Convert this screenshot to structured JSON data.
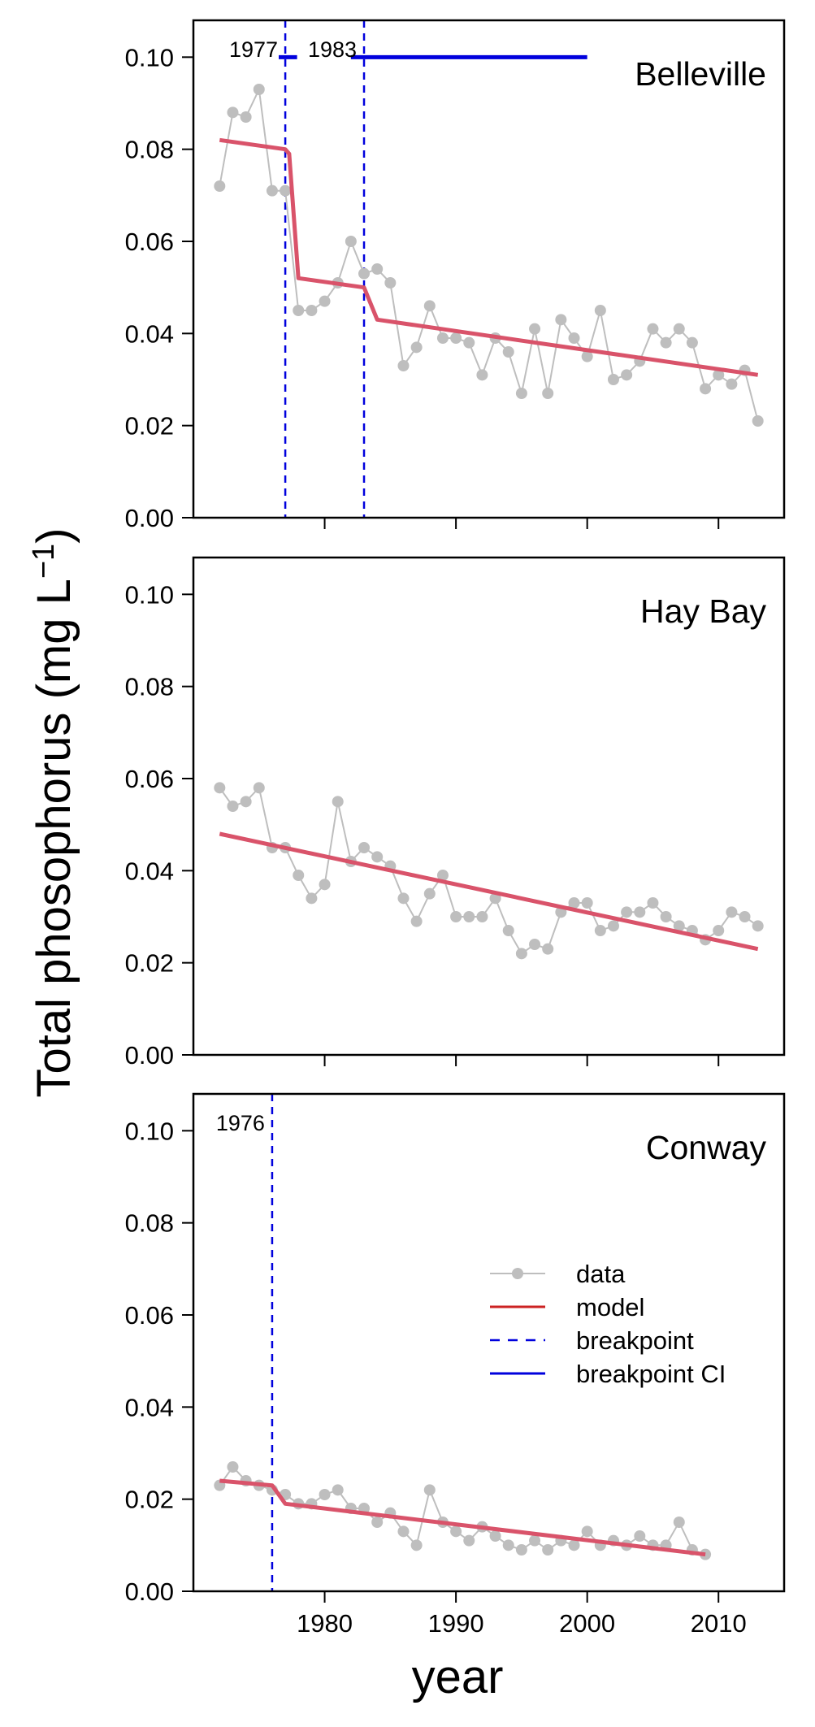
{
  "figure": {
    "ylabel_main": "Total phosophorus (mg L",
    "ylabel_sup": "−1",
    "ylabel_close": ")",
    "xlabel": "year",
    "x_ticks": [
      1980,
      1990,
      2000,
      2010
    ],
    "y_ticks": [
      "0.00",
      "0.02",
      "0.04",
      "0.06",
      "0.08",
      "0.10"
    ]
  },
  "colors": {
    "data": "#bebebe",
    "model": "#d9536a",
    "breakpoint": "#0000dd",
    "axis": "#000000"
  },
  "legend": {
    "items": [
      {
        "label": "data",
        "style": "data"
      },
      {
        "label": "model",
        "style": "model"
      },
      {
        "label": "breakpoint",
        "style": "breakpoint"
      },
      {
        "label": "breakpoint CI",
        "style": "ci"
      }
    ]
  },
  "chart_data": [
    {
      "type": "line",
      "title": "Belleville",
      "xlim": [
        1970,
        2015
      ],
      "ylim": [
        0,
        0.108
      ],
      "series": [
        {
          "name": "data",
          "x": [
            1972,
            1973,
            1974,
            1975,
            1976,
            1977,
            1978,
            1979,
            1980,
            1981,
            1982,
            1983,
            1984,
            1985,
            1986,
            1987,
            1988,
            1989,
            1990,
            1991,
            1992,
            1993,
            1994,
            1995,
            1996,
            1997,
            1998,
            1999,
            2000,
            2001,
            2002,
            2003,
            2004,
            2005,
            2006,
            2007,
            2008,
            2009,
            2010,
            2011,
            2012,
            2013
          ],
          "y": [
            0.072,
            0.088,
            0.087,
            0.093,
            0.071,
            0.071,
            0.045,
            0.045,
            0.047,
            0.051,
            0.06,
            0.053,
            0.054,
            0.051,
            0.033,
            0.037,
            0.046,
            0.039,
            0.039,
            0.038,
            0.031,
            0.039,
            0.036,
            0.027,
            0.041,
            0.027,
            0.043,
            0.039,
            0.035,
            0.045,
            0.03,
            0.031,
            0.034,
            0.041,
            0.038,
            0.041,
            0.038,
            0.028,
            0.031,
            0.029,
            0.032,
            0.021
          ]
        },
        {
          "name": "model",
          "x": [
            1972,
            1977,
            1977.3,
            1978,
            1983,
            1984,
            2013
          ],
          "y": [
            0.082,
            0.08,
            0.079,
            0.052,
            0.05,
            0.043,
            0.031
          ]
        }
      ],
      "breakpoints": [
        {
          "year": 1977,
          "label": "1977",
          "ci": [
            1976.5,
            1977.9
          ]
        },
        {
          "year": 1983,
          "label": "1983",
          "ci": [
            1982,
            2000
          ]
        }
      ]
    },
    {
      "type": "line",
      "title": "Hay Bay",
      "xlim": [
        1970,
        2015
      ],
      "ylim": [
        0,
        0.108
      ],
      "series": [
        {
          "name": "data",
          "x": [
            1972,
            1973,
            1974,
            1975,
            1976,
            1977,
            1978,
            1979,
            1980,
            1981,
            1982,
            1983,
            1984,
            1985,
            1986,
            1987,
            1988,
            1989,
            1990,
            1991,
            1992,
            1993,
            1994,
            1995,
            1996,
            1997,
            1998,
            1999,
            2000,
            2001,
            2002,
            2003,
            2004,
            2005,
            2006,
            2007,
            2008,
            2009,
            2010,
            2011,
            2012,
            2013
          ],
          "y": [
            0.058,
            0.054,
            0.055,
            0.058,
            0.045,
            0.045,
            0.039,
            0.034,
            0.037,
            0.055,
            0.042,
            0.045,
            0.043,
            0.041,
            0.034,
            0.029,
            0.035,
            0.039,
            0.03,
            0.03,
            0.03,
            0.034,
            0.027,
            0.022,
            0.024,
            0.023,
            0.031,
            0.033,
            0.033,
            0.027,
            0.028,
            0.031,
            0.031,
            0.033,
            0.03,
            0.028,
            0.027,
            0.025,
            0.027,
            0.031,
            0.03,
            0.028
          ]
        },
        {
          "name": "model",
          "x": [
            1972,
            2013
          ],
          "y": [
            0.048,
            0.023
          ]
        }
      ],
      "breakpoints": []
    },
    {
      "type": "line",
      "title": "Conway",
      "xlim": [
        1970,
        2015
      ],
      "ylim": [
        0,
        0.108
      ],
      "series": [
        {
          "name": "data",
          "x": [
            1972,
            1973,
            1974,
            1975,
            1976,
            1977,
            1978,
            1979,
            1980,
            1981,
            1982,
            1983,
            1984,
            1985,
            1986,
            1987,
            1988,
            1989,
            1990,
            1991,
            1992,
            1993,
            1994,
            1995,
            1996,
            1997,
            1998,
            1999,
            2000,
            2001,
            2002,
            2003,
            2004,
            2005,
            2006,
            2007,
            2008,
            2009
          ],
          "y": [
            0.023,
            0.027,
            0.024,
            0.023,
            0.022,
            0.021,
            0.019,
            0.019,
            0.021,
            0.022,
            0.018,
            0.018,
            0.015,
            0.017,
            0.013,
            0.01,
            0.022,
            0.015,
            0.013,
            0.011,
            0.014,
            0.012,
            0.01,
            0.009,
            0.011,
            0.009,
            0.011,
            0.01,
            0.013,
            0.01,
            0.011,
            0.01,
            0.012,
            0.01,
            0.01,
            0.015,
            0.009,
            0.008
          ]
        },
        {
          "name": "model",
          "x": [
            1972,
            1976,
            1977,
            2009
          ],
          "y": [
            0.024,
            0.023,
            0.019,
            0.008
          ]
        }
      ],
      "breakpoints": [
        {
          "year": 1976,
          "label": "1976"
        }
      ]
    }
  ]
}
